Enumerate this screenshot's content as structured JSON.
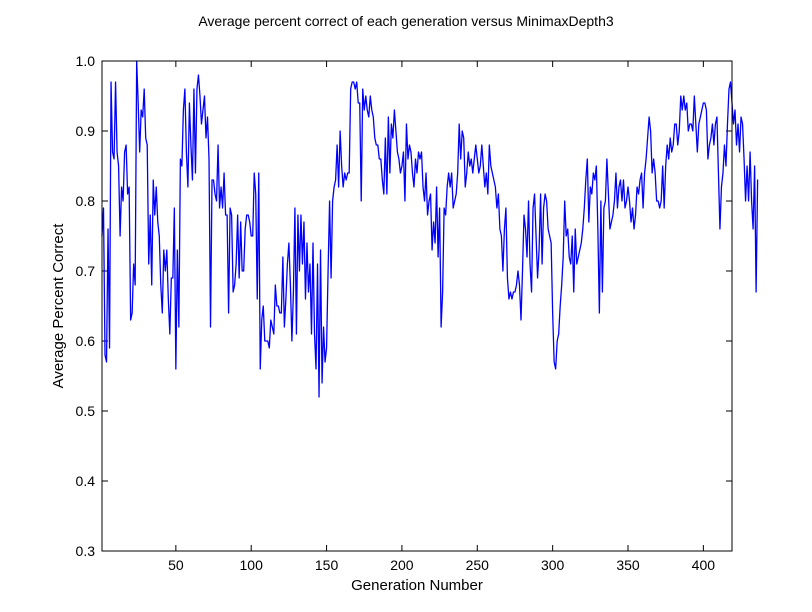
{
  "chart_data": {
    "type": "line",
    "title": "Average percent correct of each generation versus MinimaxDepth3",
    "xlabel": "Generation Number",
    "ylabel": "Average Percent Correct",
    "xlim": [
      1,
      419
    ],
    "ylim": [
      0.3,
      1.0
    ],
    "xticks": [
      50,
      100,
      150,
      200,
      250,
      300,
      350,
      400
    ],
    "yticks": [
      0.3,
      0.4,
      0.5,
      0.6,
      0.7,
      0.8,
      0.9,
      1.0
    ],
    "yticklabels": [
      "0.3",
      "0.4",
      "0.5",
      "0.6",
      "0.7",
      "0.8",
      "0.9",
      "1.0"
    ],
    "grid": false,
    "line_color": "#0000ff",
    "series": [
      {
        "values": [
          0.75,
          0.79,
          0.58,
          0.57,
          0.76,
          0.59,
          0.97,
          0.87,
          0.86,
          0.97,
          0.87,
          0.85,
          0.75,
          0.82,
          0.8,
          0.87,
          0.88,
          0.81,
          0.82,
          0.63,
          0.64,
          0.71,
          0.68,
          1.0,
          0.94,
          0.87,
          0.93,
          0.92,
          0.96,
          0.89,
          0.88,
          0.71,
          0.78,
          0.68,
          0.83,
          0.78,
          0.82,
          0.77,
          0.75,
          0.68,
          0.64,
          0.73,
          0.7,
          0.73,
          0.66,
          0.61,
          0.69,
          0.69,
          0.79,
          0.56,
          0.73,
          0.62,
          0.86,
          0.85,
          0.93,
          0.96,
          0.87,
          0.82,
          0.94,
          0.88,
          0.83,
          0.96,
          0.84,
          0.96,
          0.98,
          0.95,
          0.91,
          0.93,
          0.95,
          0.89,
          0.92,
          0.86,
          0.62,
          0.83,
          0.83,
          0.81,
          0.8,
          0.88,
          0.79,
          0.82,
          0.79,
          0.84,
          0.78,
          0.78,
          0.64,
          0.79,
          0.78,
          0.67,
          0.68,
          0.71,
          0.78,
          0.69,
          0.77,
          0.7,
          0.7,
          0.76,
          0.78,
          0.78,
          0.77,
          0.75,
          0.75,
          0.84,
          0.81,
          0.66,
          0.84,
          0.56,
          0.63,
          0.65,
          0.6,
          0.6,
          0.6,
          0.59,
          0.63,
          0.62,
          0.61,
          0.68,
          0.65,
          0.65,
          0.64,
          0.64,
          0.72,
          0.62,
          0.66,
          0.71,
          0.74,
          0.68,
          0.6,
          0.67,
          0.79,
          0.61,
          0.78,
          0.7,
          0.78,
          0.71,
          0.77,
          0.66,
          0.74,
          0.67,
          0.71,
          0.61,
          0.74,
          0.61,
          0.56,
          0.71,
          0.52,
          0.73,
          0.54,
          0.62,
          0.57,
          0.59,
          0.7,
          0.8,
          0.69,
          0.8,
          0.82,
          0.83,
          0.88,
          0.82,
          0.9,
          0.85,
          0.82,
          0.84,
          0.83,
          0.84,
          0.84,
          0.96,
          0.97,
          0.97,
          0.96,
          0.97,
          0.94,
          0.94,
          0.8,
          0.96,
          0.93,
          0.95,
          0.93,
          0.92,
          0.95,
          0.93,
          0.92,
          0.89,
          0.88,
          0.88,
          0.86,
          0.86,
          0.83,
          0.81,
          0.89,
          0.81,
          0.92,
          0.84,
          0.91,
          0.89,
          0.93,
          0.9,
          0.87,
          0.86,
          0.84,
          0.85,
          0.87,
          0.8,
          0.91,
          0.86,
          0.88,
          0.87,
          0.84,
          0.82,
          0.86,
          0.84,
          0.87,
          0.86,
          0.87,
          0.82,
          0.8,
          0.84,
          0.78,
          0.8,
          0.81,
          0.73,
          0.77,
          0.74,
          0.82,
          0.72,
          0.79,
          0.62,
          0.67,
          0.79,
          0.78,
          0.82,
          0.84,
          0.82,
          0.84,
          0.79,
          0.8,
          0.81,
          0.84,
          0.91,
          0.86,
          0.9,
          0.89,
          0.82,
          0.84,
          0.87,
          0.85,
          0.86,
          0.84,
          0.86,
          0.88,
          0.86,
          0.84,
          0.85,
          0.88,
          0.85,
          0.82,
          0.84,
          0.81,
          0.88,
          0.85,
          0.84,
          0.83,
          0.82,
          0.79,
          0.81,
          0.76,
          0.75,
          0.7,
          0.76,
          0.79,
          0.69,
          0.66,
          0.67,
          0.66,
          0.67,
          0.67,
          0.68,
          0.7,
          0.68,
          0.63,
          0.7,
          0.78,
          0.76,
          0.72,
          0.8,
          0.71,
          0.67,
          0.79,
          0.81,
          0.75,
          0.69,
          0.73,
          0.81,
          0.71,
          0.79,
          0.81,
          0.8,
          0.76,
          0.75,
          0.74,
          0.64,
          0.57,
          0.56,
          0.6,
          0.61,
          0.65,
          0.68,
          0.72,
          0.8,
          0.75,
          0.76,
          0.72,
          0.71,
          0.75,
          0.67,
          0.76,
          0.71,
          0.72,
          0.73,
          0.74,
          0.76,
          0.79,
          0.83,
          0.86,
          0.77,
          0.82,
          0.81,
          0.84,
          0.83,
          0.85,
          0.76,
          0.64,
          0.8,
          0.67,
          0.79,
          0.8,
          0.86,
          0.81,
          0.76,
          0.77,
          0.78,
          0.8,
          0.84,
          0.79,
          0.82,
          0.83,
          0.8,
          0.83,
          0.79,
          0.8,
          0.82,
          0.8,
          0.77,
          0.79,
          0.76,
          0.78,
          0.82,
          0.81,
          0.83,
          0.84,
          0.79,
          0.84,
          0.86,
          0.89,
          0.92,
          0.9,
          0.84,
          0.86,
          0.84,
          0.8,
          0.8,
          0.79,
          0.8,
          0.85,
          0.79,
          0.85,
          0.88,
          0.86,
          0.89,
          0.87,
          0.88,
          0.91,
          0.91,
          0.88,
          0.9,
          0.95,
          0.93,
          0.95,
          0.93,
          0.94,
          0.9,
          0.91,
          0.91,
          0.9,
          0.95,
          0.91,
          0.87,
          0.91,
          0.92,
          0.93,
          0.94,
          0.94,
          0.93,
          0.86,
          0.88,
          0.89,
          0.91,
          0.88,
          0.91,
          0.92,
          0.84,
          0.76,
          0.82,
          0.84,
          0.88,
          0.85,
          0.91,
          0.96,
          0.97,
          0.94,
          0.91,
          0.93,
          0.88,
          0.91,
          0.87,
          0.92,
          0.91,
          0.86,
          0.8,
          0.85,
          0.8,
          0.87,
          0.8,
          0.76,
          0.85,
          0.67,
          0.83
        ]
      }
    ]
  }
}
